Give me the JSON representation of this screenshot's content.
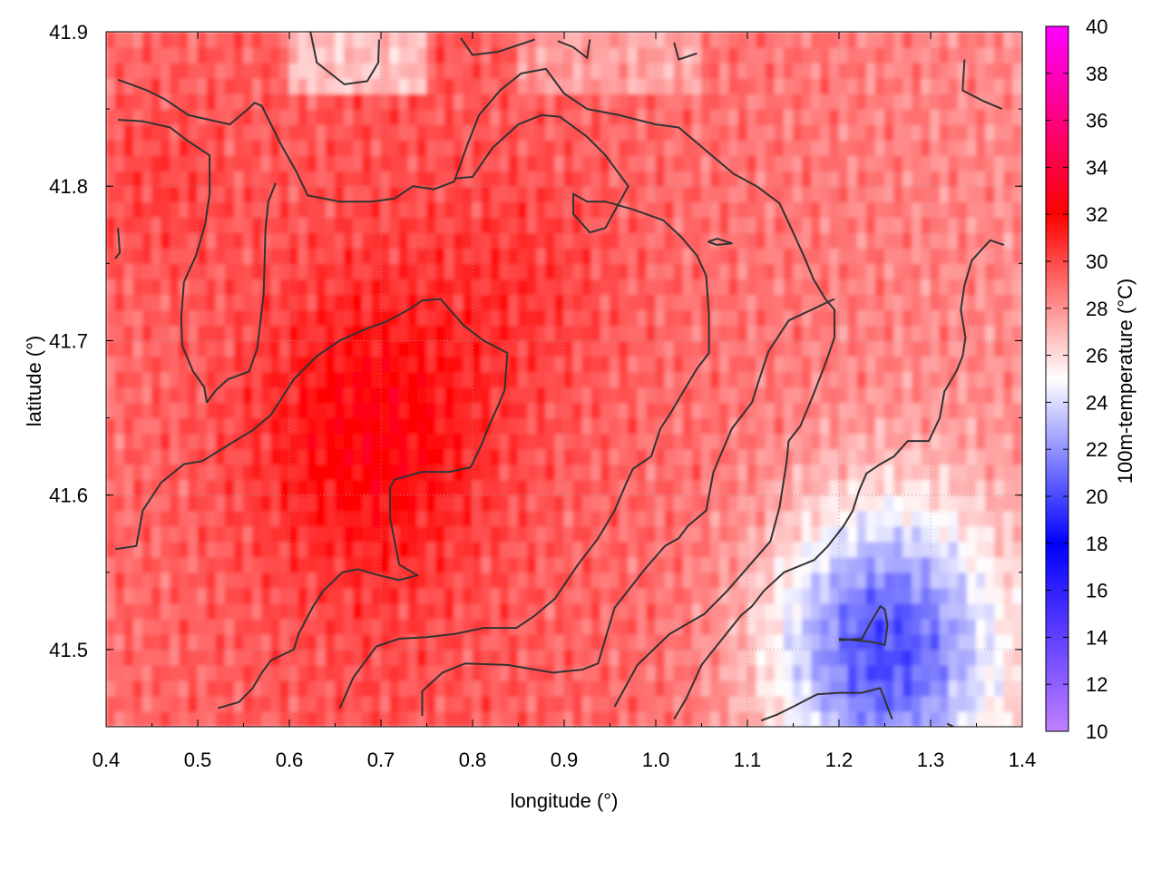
{
  "chart_data": {
    "type": "heatmap",
    "title": "",
    "xlabel": "longitude (°)",
    "ylabel": "latitude (°)",
    "colorbar_label": "100m-temperature (°C)",
    "xlim": [
      0.4,
      1.4
    ],
    "ylim": [
      41.45,
      41.9
    ],
    "x_ticks": [
      "0.4",
      "0.5",
      "0.6",
      "0.7",
      "0.8",
      "0.9",
      "1.0",
      "1.1",
      "1.2",
      "1.3",
      "1.4"
    ],
    "y_ticks": [
      "41.5",
      "41.6",
      "41.7",
      "41.8",
      "41.9"
    ],
    "colorbar_range": [
      10,
      40
    ],
    "colorbar_ticks": [
      "10",
      "12",
      "14",
      "16",
      "18",
      "20",
      "22",
      "24",
      "26",
      "28",
      "30",
      "32",
      "34",
      "36",
      "38",
      "40"
    ],
    "colormap": [
      {
        "value": 10,
        "color": "#c080ff"
      },
      {
        "value": 14,
        "color": "#6040ff"
      },
      {
        "value": 18,
        "color": "#0000ff"
      },
      {
        "value": 25,
        "color": "#ffffff"
      },
      {
        "value": 32,
        "color": "#ff0000"
      },
      {
        "value": 40,
        "color": "#ff00ff"
      }
    ],
    "grid": true,
    "grid_style": "dotted",
    "contour_color": "#333333",
    "contour_lines": [
      {
        "points": [
          [
            0.413,
            41.869
          ],
          [
            0.445,
            41.862
          ],
          [
            0.465,
            41.856
          ],
          [
            0.49,
            41.846
          ],
          [
            0.535,
            41.84
          ],
          [
            0.555,
            41.85
          ],
          [
            0.562,
            41.854
          ],
          [
            0.57,
            41.852
          ],
          [
            0.59,
            41.828
          ],
          [
            0.608,
            41.809
          ],
          [
            0.62,
            41.794
          ],
          [
            0.655,
            41.79
          ],
          [
            0.69,
            41.79
          ],
          [
            0.715,
            41.792
          ],
          [
            0.735,
            41.8
          ],
          [
            0.758,
            41.798
          ],
          [
            0.78,
            41.803
          ],
          [
            0.795,
            41.828
          ],
          [
            0.807,
            41.846
          ],
          [
            0.83,
            41.862
          ],
          [
            0.853,
            41.873
          ],
          [
            0.88,
            41.876
          ],
          [
            0.9,
            41.86
          ],
          [
            0.925,
            41.85
          ],
          [
            0.96,
            41.846
          ],
          [
            1.0,
            41.84
          ],
          [
            1.025,
            41.838
          ],
          [
            1.055,
            41.823
          ],
          [
            1.085,
            41.808
          ],
          [
            1.11,
            41.8
          ],
          [
            1.135,
            41.789
          ],
          [
            1.15,
            41.77
          ],
          [
            1.163,
            41.753
          ],
          [
            1.172,
            41.74
          ],
          [
            1.185,
            41.727
          ],
          [
            1.195,
            41.72
          ],
          [
            1.195,
            41.702
          ],
          [
            1.185,
            41.685
          ],
          [
            1.172,
            41.665
          ],
          [
            1.158,
            41.645
          ],
          [
            1.145,
            41.635
          ],
          [
            1.143,
            41.622
          ],
          [
            1.135,
            41.592
          ],
          [
            1.125,
            41.57
          ],
          [
            1.103,
            41.555
          ],
          [
            1.078,
            41.538
          ],
          [
            1.053,
            41.523
          ],
          [
            1.015,
            41.51
          ],
          [
            0.98,
            41.49
          ],
          [
            0.955,
            41.463
          ]
        ]
      },
      {
        "points": [
          [
            0.413,
            41.843
          ],
          [
            0.44,
            41.842
          ],
          [
            0.47,
            41.838
          ],
          [
            0.49,
            41.829
          ],
          [
            0.513,
            41.82
          ],
          [
            0.513,
            41.795
          ],
          [
            0.508,
            41.775
          ],
          [
            0.498,
            41.755
          ],
          [
            0.485,
            41.738
          ],
          [
            0.482,
            41.715
          ],
          [
            0.483,
            41.697
          ],
          [
            0.488,
            41.69
          ],
          [
            0.495,
            41.68
          ],
          [
            0.507,
            41.67
          ],
          [
            0.51,
            41.66
          ],
          [
            0.52,
            41.668
          ],
          [
            0.533,
            41.675
          ],
          [
            0.556,
            41.68
          ],
          [
            0.565,
            41.695
          ],
          [
            0.572,
            41.73
          ],
          [
            0.574,
            41.772
          ],
          [
            0.577,
            41.79
          ],
          [
            0.585,
            41.802
          ]
        ]
      },
      {
        "points": [
          [
            0.41,
            41.565
          ],
          [
            0.433,
            41.567
          ],
          [
            0.44,
            41.59
          ],
          [
            0.46,
            41.608
          ],
          [
            0.485,
            41.62
          ],
          [
            0.505,
            41.622
          ],
          [
            0.535,
            41.633
          ],
          [
            0.56,
            41.642
          ],
          [
            0.58,
            41.652
          ],
          [
            0.605,
            41.675
          ],
          [
            0.63,
            41.69
          ],
          [
            0.655,
            41.7
          ],
          [
            0.685,
            41.708
          ],
          [
            0.705,
            41.712
          ],
          [
            0.73,
            41.72
          ],
          [
            0.745,
            41.726
          ],
          [
            0.765,
            41.727
          ],
          [
            0.79,
            41.71
          ],
          [
            0.812,
            41.7
          ],
          [
            0.838,
            41.692
          ],
          [
            0.835,
            41.668
          ],
          [
            0.828,
            41.658
          ],
          [
            0.818,
            41.645
          ],
          [
            0.81,
            41.633
          ],
          [
            0.798,
            41.618
          ],
          [
            0.775,
            41.615
          ],
          [
            0.745,
            41.615
          ],
          [
            0.715,
            41.61
          ],
          [
            0.71,
            41.605
          ],
          [
            0.71,
            41.585
          ],
          [
            0.715,
            41.57
          ],
          [
            0.72,
            41.555
          ],
          [
            0.74,
            41.548
          ],
          [
            0.72,
            41.545
          ],
          [
            0.698,
            41.548
          ],
          [
            0.675,
            41.552
          ],
          [
            0.658,
            41.55
          ],
          [
            0.637,
            41.538
          ],
          [
            0.625,
            41.527
          ],
          [
            0.61,
            41.51
          ],
          [
            0.605,
            41.5
          ],
          [
            0.58,
            41.493
          ],
          [
            0.57,
            41.485
          ],
          [
            0.56,
            41.475
          ],
          [
            0.545,
            41.466
          ],
          [
            0.522,
            41.462
          ]
        ]
      },
      {
        "points": [
          [
            0.655,
            41.462
          ],
          [
            0.67,
            41.482
          ],
          [
            0.695,
            41.502
          ],
          [
            0.72,
            41.507
          ],
          [
            0.75,
            41.508
          ],
          [
            0.78,
            41.51
          ],
          [
            0.812,
            41.514
          ],
          [
            0.848,
            41.514
          ],
          [
            0.868,
            41.522
          ],
          [
            0.89,
            41.533
          ],
          [
            0.915,
            41.555
          ],
          [
            0.937,
            41.572
          ],
          [
            0.955,
            41.59
          ],
          [
            0.968,
            41.608
          ],
          [
            0.975,
            41.617
          ],
          [
            0.995,
            41.625
          ],
          [
            1.005,
            41.643
          ],
          [
            1.015,
            41.652
          ],
          [
            1.028,
            41.665
          ],
          [
            1.045,
            41.682
          ],
          [
            1.058,
            41.692
          ],
          [
            1.058,
            41.717
          ],
          [
            1.055,
            41.742
          ],
          [
            1.045,
            41.755
          ],
          [
            1.028,
            41.767
          ],
          [
            1.008,
            41.778
          ],
          [
            0.975,
            41.785
          ],
          [
            0.945,
            41.79
          ],
          [
            0.925,
            41.79
          ],
          [
            0.91,
            41.795
          ],
          [
            0.91,
            41.782
          ],
          [
            0.928,
            41.77
          ],
          [
            0.945,
            41.773
          ],
          [
            0.97,
            41.8
          ],
          [
            0.945,
            41.82
          ],
          [
            0.925,
            41.832
          ],
          [
            0.895,
            41.845
          ],
          [
            0.875,
            41.846
          ],
          [
            0.85,
            41.84
          ],
          [
            0.822,
            41.825
          ],
          [
            0.8,
            41.806
          ],
          [
            0.78,
            41.805
          ]
        ]
      },
      {
        "points": [
          [
            0.745,
            41.457
          ],
          [
            0.745,
            41.473
          ],
          [
            0.767,
            41.485
          ],
          [
            0.792,
            41.491
          ],
          [
            0.838,
            41.49
          ],
          [
            0.888,
            41.485
          ],
          [
            0.92,
            41.487
          ],
          [
            0.937,
            41.491
          ],
          [
            0.955,
            41.527
          ],
          [
            0.988,
            41.552
          ],
          [
            1.01,
            41.567
          ],
          [
            1.025,
            41.572
          ],
          [
            1.035,
            41.58
          ],
          [
            1.055,
            41.59
          ],
          [
            1.063,
            41.615
          ],
          [
            1.083,
            41.643
          ],
          [
            1.105,
            41.66
          ],
          [
            1.113,
            41.675
          ],
          [
            1.123,
            41.693
          ],
          [
            1.145,
            41.713
          ],
          [
            1.195,
            41.727
          ]
        ]
      },
      {
        "points": [
          [
            1.02,
            41.455
          ],
          [
            1.033,
            41.468
          ],
          [
            1.05,
            41.49
          ],
          [
            1.07,
            41.505
          ],
          [
            1.093,
            41.522
          ],
          [
            1.105,
            41.528
          ],
          [
            1.118,
            41.538
          ],
          [
            1.14,
            41.55
          ],
          [
            1.173,
            41.558
          ],
          [
            1.188,
            41.567
          ],
          [
            1.205,
            41.58
          ],
          [
            1.215,
            41.59
          ],
          [
            1.222,
            41.603
          ],
          [
            1.23,
            41.614
          ],
          [
            1.245,
            41.62
          ],
          [
            1.26,
            41.625
          ],
          [
            1.275,
            41.635
          ],
          [
            1.298,
            41.635
          ],
          [
            1.31,
            41.65
          ],
          [
            1.315,
            41.667
          ],
          [
            1.328,
            41.68
          ],
          [
            1.335,
            41.69
          ],
          [
            1.338,
            41.702
          ],
          [
            1.333,
            41.72
          ],
          [
            1.337,
            41.736
          ],
          [
            1.345,
            41.752
          ],
          [
            1.365,
            41.765
          ],
          [
            1.38,
            41.762
          ]
        ]
      },
      {
        "points": [
          [
            1.115,
            41.454
          ],
          [
            1.133,
            41.458
          ],
          [
            1.15,
            41.463
          ],
          [
            1.176,
            41.471
          ],
          [
            1.2,
            41.472
          ],
          [
            1.225,
            41.472
          ],
          [
            1.245,
            41.475
          ],
          [
            1.258,
            41.455
          ]
        ]
      },
      {
        "points": [
          [
            1.2,
            41.506
          ],
          [
            1.225,
            41.507
          ],
          [
            1.235,
            41.518
          ],
          [
            1.245,
            41.528
          ],
          [
            1.25,
            41.526
          ],
          [
            1.253,
            41.516
          ],
          [
            1.25,
            41.503
          ],
          [
            1.235,
            41.505
          ],
          [
            1.2,
            41.507
          ]
        ]
      },
      {
        "points": [
          [
            1.057,
            41.764
          ],
          [
            1.067,
            41.762
          ],
          [
            1.083,
            41.763
          ],
          [
            1.067,
            41.766
          ],
          [
            1.057,
            41.764
          ]
        ]
      },
      {
        "points": [
          [
            0.413,
            41.773
          ],
          [
            0.415,
            41.757
          ],
          [
            0.41,
            41.753
          ]
        ]
      },
      {
        "points": [
          [
            1.337,
            41.882
          ],
          [
            1.335,
            41.862
          ],
          [
            1.358,
            41.855
          ],
          [
            1.378,
            41.85
          ]
        ]
      },
      {
        "points": [
          [
            0.622,
            41.903
          ],
          [
            0.63,
            41.88
          ],
          [
            0.66,
            41.866
          ],
          [
            0.685,
            41.868
          ],
          [
            0.697,
            41.88
          ],
          [
            0.698,
            41.895
          ]
        ]
      },
      {
        "points": [
          [
            0.787,
            41.896
          ],
          [
            0.8,
            41.885
          ],
          [
            0.828,
            41.887
          ],
          [
            0.868,
            41.895
          ]
        ]
      },
      {
        "points": [
          [
            0.893,
            41.894
          ],
          [
            0.91,
            41.89
          ],
          [
            0.925,
            41.883
          ],
          [
            0.928,
            41.895
          ]
        ]
      },
      {
        "points": [
          [
            1.02,
            41.893
          ],
          [
            1.025,
            41.882
          ],
          [
            1.045,
            41.886
          ]
        ]
      },
      {
        "points": [
          [
            1.318,
            41.452
          ],
          [
            1.325,
            41.45
          ]
        ]
      }
    ]
  }
}
